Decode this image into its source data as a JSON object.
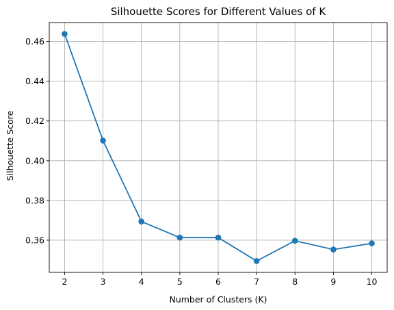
{
  "chart_data": {
    "type": "line",
    "title": "Silhouette Scores for Different Values of K",
    "xlabel": "Number of Clusters (K)",
    "ylabel": "Silhouette Score",
    "x": [
      2,
      3,
      4,
      5,
      6,
      7,
      8,
      9,
      10
    ],
    "series": [
      {
        "values": [
          0.4638,
          0.4101,
          0.3694,
          0.3613,
          0.3613,
          0.3495,
          0.3597,
          0.3553,
          0.3584
        ],
        "color": "#1f77b4",
        "marker": "circle"
      }
    ],
    "xticks": [
      "2",
      "3",
      "4",
      "5",
      "6",
      "7",
      "8",
      "9",
      "10"
    ],
    "yticks": [
      "0.36",
      "0.38",
      "0.40",
      "0.42",
      "0.44",
      "0.46"
    ],
    "xlim": [
      1.6,
      10.4
    ],
    "ylim": [
      0.3438,
      0.4695
    ],
    "grid": true
  }
}
